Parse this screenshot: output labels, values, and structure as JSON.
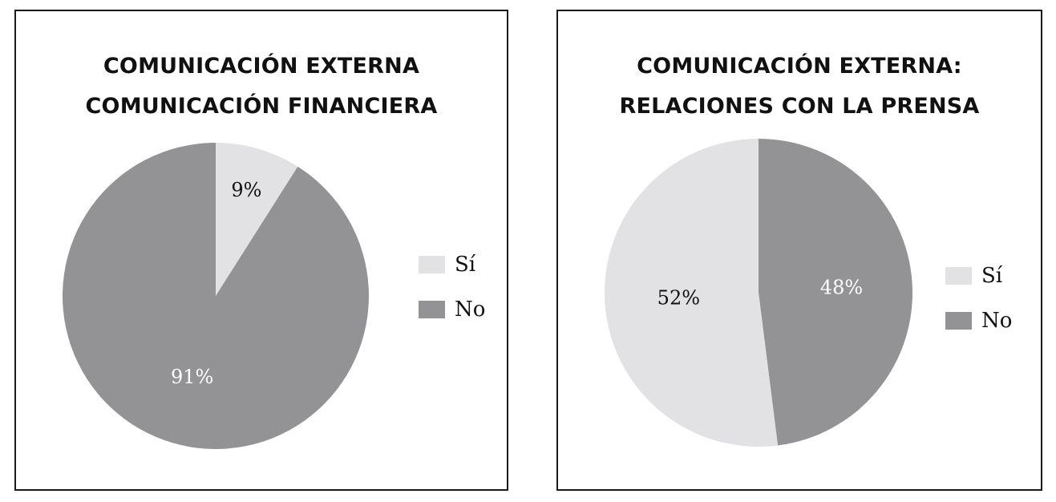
{
  "chart_data": [
    {
      "type": "pie",
      "title_lines": [
        "COMUNICACIÓN EXTERNA",
        "COMUNICACIÓN FINANCIERA"
      ],
      "categories": [
        "Sí",
        "No"
      ],
      "values": [
        9,
        91
      ],
      "labels": [
        "9%",
        "91%"
      ],
      "colors": [
        "#e2e2e4",
        "#939396"
      ],
      "label_colors": [
        "#111111",
        "#ffffff"
      ],
      "legend_placement": "right"
    },
    {
      "type": "pie",
      "title_lines": [
        "COMUNICACIÓN EXTERNA:",
        "RELACIONES CON LA PRENSA"
      ],
      "categories": [
        "Sí",
        "No"
      ],
      "values": [
        52,
        48
      ],
      "labels": [
        "52%",
        "48%"
      ],
      "colors": [
        "#e2e2e4",
        "#939396"
      ],
      "label_colors": [
        "#111111",
        "#ffffff"
      ],
      "legend_placement": "right"
    }
  ]
}
